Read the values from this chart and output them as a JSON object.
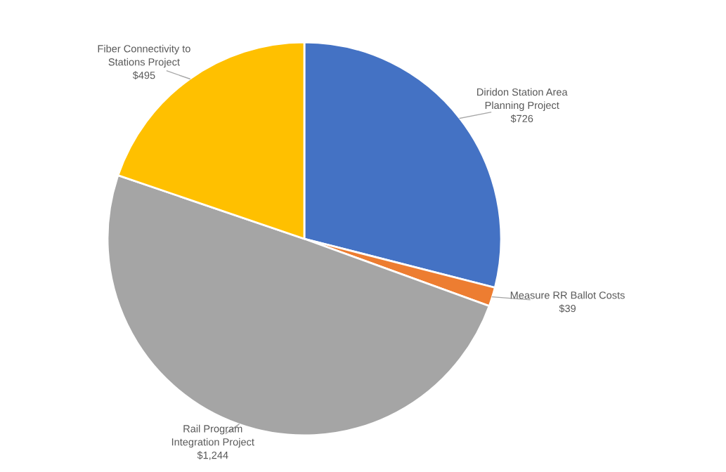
{
  "chart_data": {
    "type": "pie",
    "categories": [
      "Diridon Station Area\nPlanning Project",
      "Measure RR Ballot Costs",
      "Rail Program\nIntegration Project",
      "Fiber Connectivity to\nStations Project"
    ],
    "values": [
      726,
      39,
      1244,
      495
    ],
    "value_labels": [
      "$726",
      "$39",
      "$1,244",
      "$495"
    ],
    "colors": [
      "#4472c4",
      "#ed7d31",
      "#a5a5a5",
      "#ffc000"
    ],
    "legend": false
  }
}
